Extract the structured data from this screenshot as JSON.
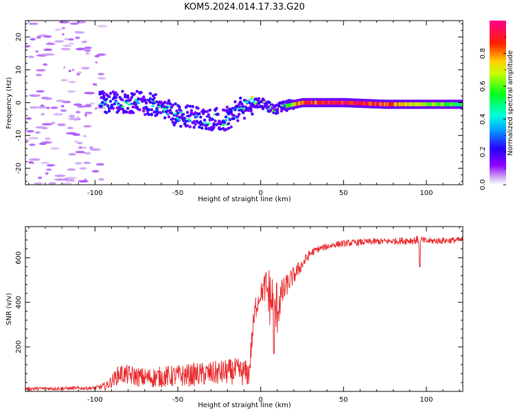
{
  "chart_data": [
    {
      "type": "heatmap",
      "title": "KOM5.2024.014.17.33.G20",
      "xlabel": "Height of straight line (km)",
      "ylabel": "Frequency (Hz)",
      "xlim": [
        -142,
        122
      ],
      "ylim": [
        -25,
        25
      ],
      "x_ticks": [
        -100,
        -50,
        0,
        50,
        100
      ],
      "y_ticks": [
        -20,
        -10,
        0,
        10,
        20
      ],
      "colorbar": {
        "label": "Normalized spectral amplitude",
        "range": [
          0,
          1
        ],
        "ticks": [
          0.0,
          0.2,
          0.4,
          0.6,
          0.8
        ],
        "colormap": "rainbow (purple-blue-cyan-green-yellow-red-magenta)"
      },
      "ridge": [
        {
          "x": -95,
          "f": 0,
          "amp": 0.4
        },
        {
          "x": -80,
          "f": 0.5,
          "amp": 0.5
        },
        {
          "x": -60,
          "f": -1,
          "amp": 0.5
        },
        {
          "x": -50,
          "f": -4,
          "amp": 0.45
        },
        {
          "x": -35,
          "f": -4.5,
          "amp": 0.45
        },
        {
          "x": -22,
          "f": -5.5,
          "amp": 0.55
        },
        {
          "x": -12,
          "f": -2,
          "amp": 0.5
        },
        {
          "x": -5,
          "f": 0,
          "amp": 0.7
        },
        {
          "x": 0,
          "f": 0,
          "amp": 0.85
        },
        {
          "x": 8,
          "f": -2,
          "amp": 0.55
        },
        {
          "x": 15,
          "f": -1,
          "amp": 0.6
        },
        {
          "x": 25,
          "f": 0,
          "amp": 0.9
        },
        {
          "x": 50,
          "f": 0,
          "amp": 1.0
        },
        {
          "x": 75,
          "f": -0.5,
          "amp": 0.9
        },
        {
          "x": 100,
          "f": -0.5,
          "amp": 0.7
        },
        {
          "x": 122,
          "f": -0.5,
          "amp": 0.55
        }
      ],
      "noise_region": [
        -142,
        -95
      ]
    },
    {
      "type": "line",
      "title": "",
      "xlabel": "Height of straight line (km)",
      "ylabel": "SNR (v/v)",
      "xlim": [
        -142,
        122
      ],
      "ylim": [
        0,
        740
      ],
      "x_ticks": [
        -100,
        -50,
        0,
        50,
        100
      ],
      "y_ticks": [
        200,
        400,
        600
      ],
      "color": "#e8292b",
      "envelope": {
        "x": [
          -142,
          -100,
          -93,
          -85,
          -70,
          -50,
          -30,
          -15,
          -7,
          -5,
          -3,
          0,
          3,
          6,
          9,
          12,
          16,
          20,
          25,
          30,
          35,
          45,
          60,
          80,
          96,
          100,
          122
        ],
        "mean": [
          12,
          15,
          25,
          80,
          60,
          70,
          80,
          90,
          80,
          260,
          380,
          440,
          470,
          420,
          360,
          420,
          480,
          520,
          570,
          620,
          640,
          660,
          670,
          675,
          680,
          675,
          680
        ],
        "noise": [
          8,
          8,
          20,
          45,
          45,
          50,
          55,
          60,
          60,
          60,
          60,
          40,
          80,
          150,
          160,
          80,
          50,
          40,
          30,
          20,
          15,
          15,
          15,
          15,
          20,
          15,
          15
        ]
      }
    }
  ]
}
